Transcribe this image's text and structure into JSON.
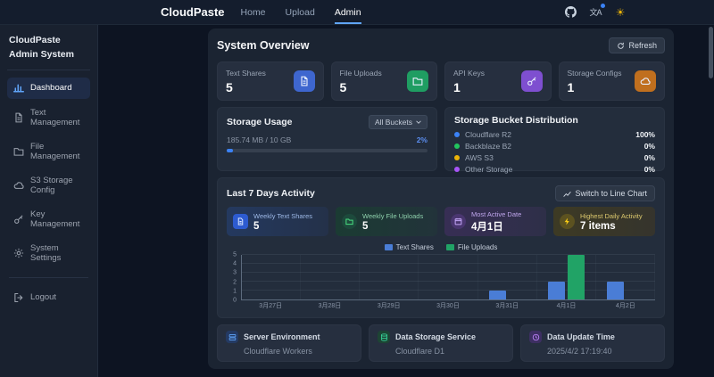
{
  "topbar": {
    "brand": "CloudPaste",
    "nav": [
      {
        "label": "Home",
        "active": false
      },
      {
        "label": "Upload",
        "active": false
      },
      {
        "label": "Admin",
        "active": true
      }
    ]
  },
  "sidebar": {
    "title": "CloudPaste Admin System",
    "items": [
      {
        "label": "Dashboard",
        "icon": "dashboard-chart",
        "active": true
      },
      {
        "label": "Text Management",
        "icon": "document",
        "active": false
      },
      {
        "label": "File Management",
        "icon": "folder",
        "active": false
      },
      {
        "label": "S3 Storage Config",
        "icon": "cloud",
        "active": false
      },
      {
        "label": "Key Management",
        "icon": "key",
        "active": false
      },
      {
        "label": "System Settings",
        "icon": "gear",
        "active": false
      }
    ],
    "logout_label": "Logout"
  },
  "overview": {
    "title": "System Overview",
    "refresh_label": "Refresh",
    "stats": [
      {
        "label": "Text Shares",
        "value": "5",
        "icon": "document",
        "color": "#3e66cf"
      },
      {
        "label": "File Uploads",
        "value": "5",
        "icon": "folder",
        "color": "#1f9d62"
      },
      {
        "label": "API Keys",
        "value": "1",
        "icon": "key",
        "color": "#7e4fd0"
      },
      {
        "label": "Storage Configs",
        "value": "1",
        "icon": "cloud",
        "color": "#c06f1e"
      }
    ]
  },
  "storage_usage": {
    "title": "Storage Usage",
    "bucket_filter": "All Buckets",
    "usage_text": "185.74 MB / 10 GB",
    "percent_label": "2%",
    "percent_value": "2%",
    "bar_color": "#3b82f6"
  },
  "bucket_distribution": {
    "title": "Storage Bucket Distribution",
    "rows": [
      {
        "name": "Cloudflare R2",
        "percent": "100%",
        "color": "#3b82f6"
      },
      {
        "name": "Backblaze B2",
        "percent": "0%",
        "color": "#22c55e"
      },
      {
        "name": "AWS S3",
        "percent": "0%",
        "color": "#eab308"
      },
      {
        "name": "Other Storage",
        "percent": "0%",
        "color": "#a855f7"
      }
    ]
  },
  "activity": {
    "title": "Last 7 Days Activity",
    "switch_label": "Switch to Line Chart",
    "cards": [
      {
        "label": "Weekly Text Shares",
        "value": "5",
        "theme": "blue"
      },
      {
        "label": "Weekly File Uploads",
        "value": "5",
        "theme": "green"
      },
      {
        "label": "Most Active Date",
        "value": "4月1日",
        "theme": "purple"
      },
      {
        "label": "Highest Daily Activity",
        "value": "7 items",
        "theme": "yellow"
      }
    ]
  },
  "chart_data": {
    "type": "bar",
    "categories": [
      "3月27日",
      "3月28日",
      "3月29日",
      "3月30日",
      "3月31日",
      "4月1日",
      "4月2日"
    ],
    "series": [
      {
        "name": "Text Shares",
        "color": "#4a7dd6",
        "values": [
          0,
          0,
          0,
          0,
          1,
          2,
          2
        ]
      },
      {
        "name": "File Uploads",
        "color": "#21a366",
        "values": [
          0,
          0,
          0,
          0,
          0,
          5,
          0
        ]
      }
    ],
    "ylim": [
      0,
      5
    ],
    "yticks": [
      0,
      1,
      2,
      3,
      4,
      5
    ],
    "legend_position": "top",
    "grid": true,
    "title": "Last 7 Days Activity",
    "xlabel": "",
    "ylabel": ""
  },
  "footer_cards": [
    {
      "label": "Server Environment",
      "value": "Cloudflare Workers",
      "icon": "server"
    },
    {
      "label": "Data Storage Service",
      "value": "Cloudflare D1",
      "icon": "database"
    },
    {
      "label": "Data Update Time",
      "value": "2025/4/2 17:19:40",
      "icon": "clock"
    }
  ]
}
